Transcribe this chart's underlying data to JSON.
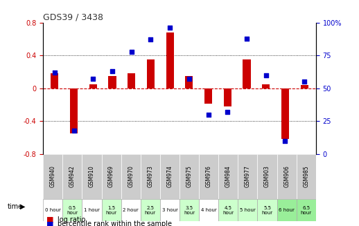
{
  "title": "GDS39 / 3438",
  "gsm_labels": [
    "GSM940",
    "GSM942",
    "GSM910",
    "GSM969",
    "GSM970",
    "GSM973",
    "GSM974",
    "GSM975",
    "GSM976",
    "GSM984",
    "GSM977",
    "GSM903",
    "GSM906",
    "GSM985"
  ],
  "time_labels": [
    "0 hour",
    "0.5\nhour",
    "1 hour",
    "1.5\nhour",
    "2 hour",
    "2.5\nhour",
    "3 hour",
    "3.5\nhour",
    "4 hour",
    "4.5\nhour",
    "5 hour",
    "5.5\nhour",
    "6 hour",
    "6.5\nhour"
  ],
  "log_ratio": [
    0.18,
    -0.55,
    0.05,
    0.15,
    0.18,
    0.35,
    0.68,
    0.15,
    -0.19,
    -0.22,
    0.35,
    0.05,
    -0.62,
    0.04
  ],
  "percentile": [
    62,
    18,
    57,
    63,
    78,
    87,
    96,
    57,
    30,
    32,
    88,
    60,
    10,
    55
  ],
  "bar_color": "#cc0000",
  "dot_color": "#0000cc",
  "ylim": [
    -0.8,
    0.8
  ],
  "y2lim": [
    0,
    100
  ],
  "yticks": [
    -0.8,
    -0.4,
    0.0,
    0.4,
    0.8
  ],
  "y2ticks": [
    0,
    25,
    50,
    75,
    100
  ],
  "ytick_labels": [
    "-0.8",
    "-0.4",
    "0",
    "0.4",
    "0.8"
  ],
  "y2tick_labels": [
    "0",
    "25",
    "50",
    "75",
    "100%"
  ],
  "zero_line_color": "#cc0000",
  "dot_line_color": "#0000aa",
  "grid_color": "#000000",
  "bg_color": "#ffffff",
  "time_bg_colors": [
    "#ffffff",
    "#ccffcc",
    "#ffffff",
    "#ccffcc",
    "#ffffff",
    "#ccffcc",
    "#ffffff",
    "#ccffcc",
    "#ffffff",
    "#ccffcc",
    "#ccffcc",
    "#ccffcc",
    "#99ee99",
    "#99ee99"
  ],
  "gsm_bg_color": "#cccccc",
  "legend_red": "log ratio",
  "legend_blue": "percentile rank within the sample"
}
